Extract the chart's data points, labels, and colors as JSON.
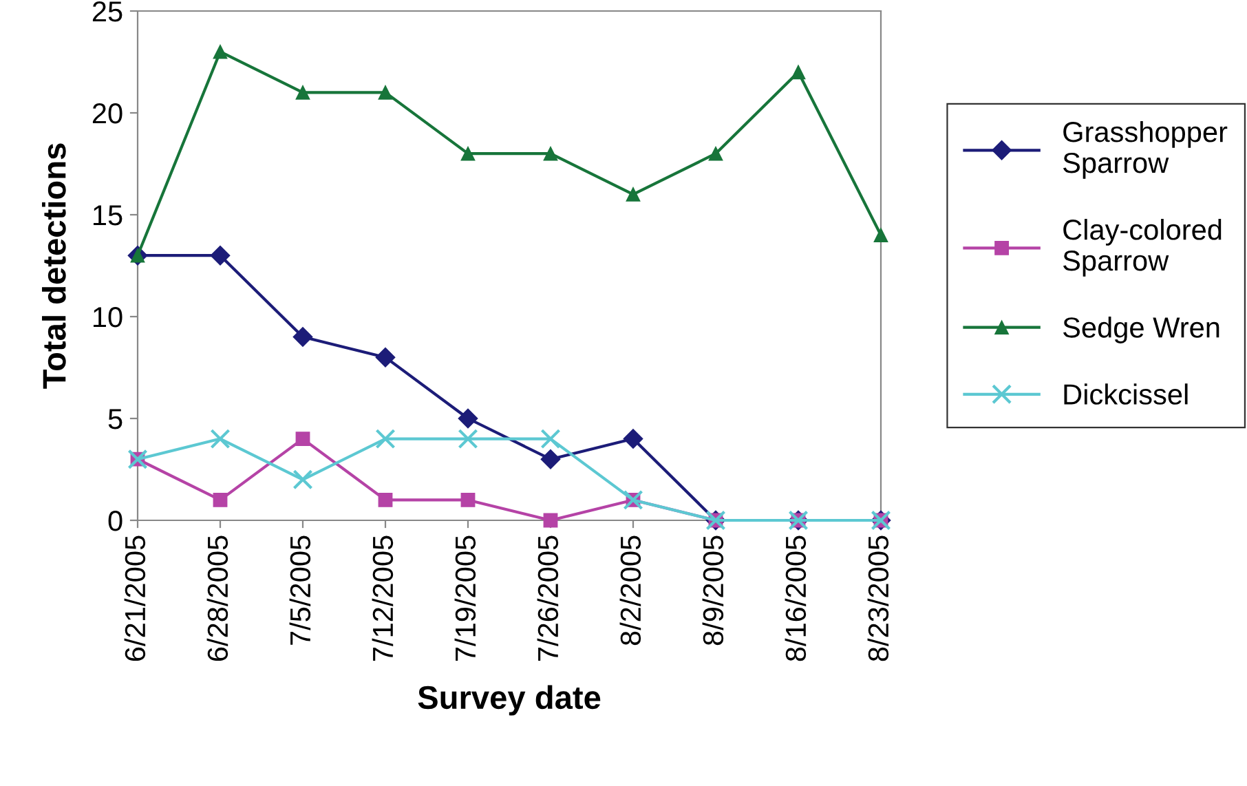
{
  "chart_data": {
    "type": "line",
    "xlabel": "Survey date",
    "ylabel": "Total detections",
    "categories": [
      "6/21/2005",
      "6/28/2005",
      "7/5/2005",
      "7/12/2005",
      "7/19/2005",
      "7/26/2005",
      "8/2/2005",
      "8/9/2005",
      "8/16/2005",
      "8/23/2005"
    ],
    "series": [
      {
        "name": "Grasshopper\nSparrow",
        "color": "#1c1c78",
        "marker": "diamond",
        "values": [
          13,
          13,
          9,
          8,
          5,
          3,
          4,
          0,
          0,
          0
        ]
      },
      {
        "name": "Clay-colored\nSparrow",
        "color": "#b543a6",
        "marker": "square",
        "values": [
          3,
          1,
          4,
          1,
          1,
          0,
          1,
          0,
          0,
          0
        ]
      },
      {
        "name": "Sedge Wren",
        "color": "#17753a",
        "marker": "triangle",
        "values": [
          13,
          23,
          21,
          21,
          18,
          18,
          16,
          18,
          22,
          14
        ]
      },
      {
        "name": "Dickcissel",
        "color": "#5cc8d2",
        "marker": "cross",
        "values": [
          3,
          4,
          2,
          4,
          4,
          4,
          1,
          0,
          0,
          0
        ]
      }
    ],
    "ylim": [
      0,
      25
    ],
    "yticks": [
      0,
      5,
      10,
      15,
      20,
      25
    ],
    "grid": false,
    "legend": "right",
    "line_style": "solid"
  }
}
